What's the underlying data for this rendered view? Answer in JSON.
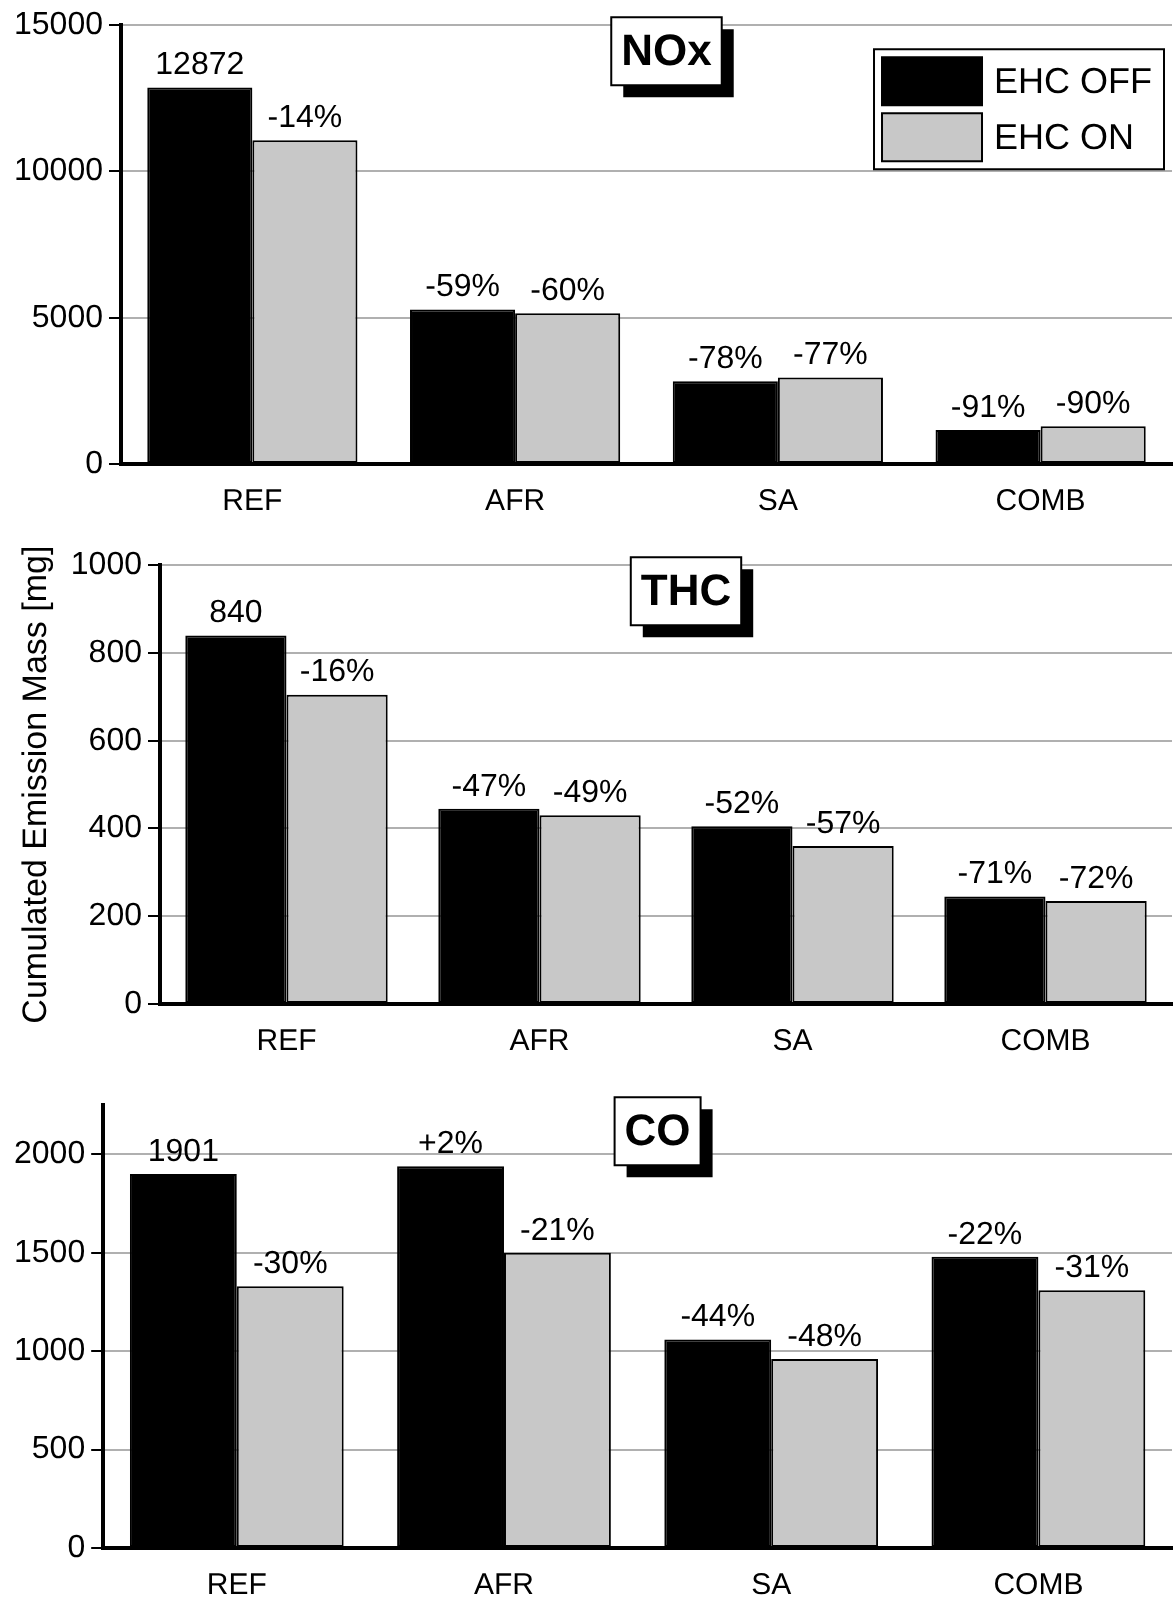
{
  "chart_data": [
    {
      "type": "bar",
      "title": "NOx",
      "categories": [
        "REF",
        "AFR",
        "SA",
        "COMB"
      ],
      "series": [
        {
          "name": "EHC OFF",
          "color": "#000000",
          "values": [
            12872,
            5280,
            2830,
            1160
          ],
          "value_labels": [
            "12872",
            null,
            null,
            null
          ]
        },
        {
          "name": "EHC ON",
          "color": "#c8c8c8",
          "values": [
            11070,
            5150,
            2960,
            1290
          ]
        }
      ],
      "annotations": [
        {
          "text": "-59%",
          "x": "AFR",
          "y": 5280
        },
        {
          "text": "-78%",
          "x": "SA",
          "y": 2830
        },
        {
          "text": "-91%",
          "x": "COMB",
          "y": 1160
        },
        {
          "text": "-14%",
          "x": "REF",
          "y": 11070
        },
        {
          "text": "-60%",
          "x": "AFR",
          "y": 5150
        },
        {
          "text": "-77%",
          "x": "SA",
          "y": 2960
        },
        {
          "text": "-90%",
          "x": "COMB",
          "y": 1290
        }
      ],
      "ylim": [
        0,
        15000
      ],
      "yticks": [
        0,
        5000,
        10000,
        15000
      ],
      "grid": "y",
      "legend": "top right"
    },
    {
      "type": "bar",
      "title": "THC",
      "ylabel": "Cumulated Emission Mass [mg]",
      "categories": [
        "REF",
        "AFR",
        "SA",
        "COMB"
      ],
      "series": [
        {
          "color": "#000000",
          "values": [
            840,
            445,
            405,
            245
          ],
          "value_labels": [
            "840",
            null,
            null,
            null
          ]
        },
        {
          "color": "#c8c8c8",
          "values": [
            705,
            430,
            360,
            235
          ]
        }
      ],
      "annotations": [
        {
          "text": "-47%",
          "x": "AFR",
          "y": 445
        },
        {
          "text": "-52%",
          "x": "SA",
          "y": 405
        },
        {
          "text": "-71%",
          "x": "COMB",
          "y": 245
        },
        {
          "text": "-16%",
          "x": "REF",
          "y": 705
        },
        {
          "text": "-49%",
          "x": "AFR",
          "y": 430
        },
        {
          "text": "-57%",
          "x": "SA",
          "y": 360
        },
        {
          "text": "-72%",
          "x": "COMB",
          "y": 235
        }
      ],
      "ylim": [
        0,
        1000
      ],
      "yticks": [
        0,
        200,
        400,
        600,
        800,
        1000
      ],
      "grid": "y"
    },
    {
      "type": "bar",
      "title": "CO",
      "categories": [
        "REF",
        "AFR",
        "SA",
        "COMB"
      ],
      "series": [
        {
          "color": "#000000",
          "values": [
            1901,
            1940,
            1060,
            1480
          ],
          "value_labels": [
            "1901",
            null,
            null,
            null
          ]
        },
        {
          "color": "#c8c8c8",
          "values": [
            1330,
            1500,
            960,
            1310
          ]
        }
      ],
      "annotations": [
        {
          "text": "+2%",
          "x": "AFR",
          "y": 1940
        },
        {
          "text": "-44%",
          "x": "SA",
          "y": 1060
        },
        {
          "text": "-22%",
          "x": "COMB",
          "y": 1480
        },
        {
          "text": "-30%",
          "x": "REF",
          "y": 1330
        },
        {
          "text": "-21%",
          "x": "AFR",
          "y": 1500
        },
        {
          "text": "-48%",
          "x": "SA",
          "y": 960
        },
        {
          "text": "-31%",
          "x": "COMB",
          "y": 1310
        }
      ],
      "ylim": [
        0,
        2250
      ],
      "yticks": [
        0,
        500,
        1000,
        1500,
        2000
      ],
      "grid": "y"
    }
  ]
}
